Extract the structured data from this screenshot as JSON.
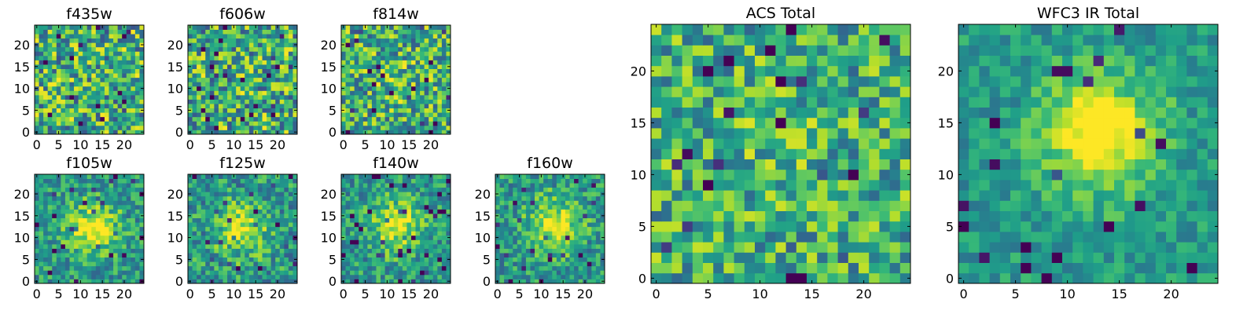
{
  "chart_data": {
    "type": "heatmap",
    "colormap": "viridis",
    "grid_size": 25,
    "panels": [
      {
        "id": "f435w",
        "title": "f435w",
        "xticks": [
          0,
          5,
          10,
          15,
          20
        ],
        "yticks": [
          0,
          5,
          10,
          15,
          20
        ],
        "xlim": [
          0,
          24
        ],
        "ylim": [
          0,
          24
        ],
        "structure": "noise",
        "noise": 0.75,
        "source_strength": 0.0,
        "source_center": [
          12,
          12
        ],
        "seed": 11
      },
      {
        "id": "f606w",
        "title": "f606w",
        "xticks": [
          0,
          5,
          10,
          15,
          20
        ],
        "yticks": [
          0,
          5,
          10,
          15,
          20
        ],
        "xlim": [
          0,
          24
        ],
        "ylim": [
          0,
          24
        ],
        "structure": "noise",
        "noise": 0.75,
        "source_strength": 0.0,
        "source_center": [
          12,
          12
        ],
        "seed": 23
      },
      {
        "id": "f814w",
        "title": "f814w",
        "xticks": [
          0,
          5,
          10,
          15,
          20
        ],
        "yticks": [
          0,
          5,
          10,
          15,
          20
        ],
        "xlim": [
          0,
          24
        ],
        "ylim": [
          0,
          24
        ],
        "structure": "noise",
        "noise": 0.7,
        "source_strength": 0.12,
        "source_center": [
          12,
          12
        ],
        "seed": 37
      },
      {
        "id": "f105w",
        "title": "f105w",
        "xticks": [
          0,
          5,
          10,
          15,
          20
        ],
        "yticks": [
          0,
          5,
          10,
          15,
          20
        ],
        "xlim": [
          0,
          24
        ],
        "ylim": [
          0,
          24
        ],
        "structure": "source",
        "noise": 0.45,
        "source_strength": 0.45,
        "source_center": [
          13,
          12
        ],
        "seed": 41
      },
      {
        "id": "f125w",
        "title": "f125w",
        "xticks": [
          0,
          5,
          10,
          15,
          20
        ],
        "yticks": [
          0,
          5,
          10,
          15,
          20
        ],
        "xlim": [
          0,
          24
        ],
        "ylim": [
          0,
          24
        ],
        "structure": "source",
        "noise": 0.5,
        "source_strength": 0.35,
        "source_center": [
          12,
          12
        ],
        "seed": 53
      },
      {
        "id": "f140w",
        "title": "f140w",
        "xticks": [
          0,
          5,
          10,
          15,
          20
        ],
        "yticks": [
          0,
          5,
          10,
          15,
          20
        ],
        "xlim": [
          0,
          24
        ],
        "ylim": [
          0,
          24
        ],
        "structure": "source",
        "noise": 0.45,
        "source_strength": 0.4,
        "source_center": [
          12,
          13
        ],
        "seed": 67
      },
      {
        "id": "f160w",
        "title": "f160w",
        "xticks": [
          0,
          5,
          10,
          15,
          20
        ],
        "yticks": [
          0,
          5,
          10,
          15,
          20
        ],
        "xlim": [
          0,
          24
        ],
        "ylim": [
          0,
          24
        ],
        "structure": "source",
        "noise": 0.45,
        "source_strength": 0.4,
        "source_center": [
          13,
          13
        ],
        "seed": 79
      },
      {
        "id": "acs-total",
        "title": "ACS Total",
        "xticks": [
          0,
          5,
          10,
          15,
          20
        ],
        "yticks": [
          0,
          5,
          10,
          15,
          20
        ],
        "xlim": [
          0,
          24
        ],
        "ylim": [
          0,
          24
        ],
        "structure": "noise",
        "noise": 0.6,
        "source_strength": 0.08,
        "source_center": [
          12,
          12
        ],
        "seed": 97
      },
      {
        "id": "wfc3-ir-total",
        "title": "WFC3 IR Total",
        "xticks": [
          0,
          5,
          10,
          15,
          20
        ],
        "yticks": [
          0,
          5,
          10,
          15,
          20
        ],
        "xlim": [
          0,
          24
        ],
        "ylim": [
          0,
          24
        ],
        "structure": "source",
        "noise": 0.3,
        "source_strength": 0.55,
        "source_center": [
          13,
          14
        ],
        "seed": 113
      }
    ]
  }
}
